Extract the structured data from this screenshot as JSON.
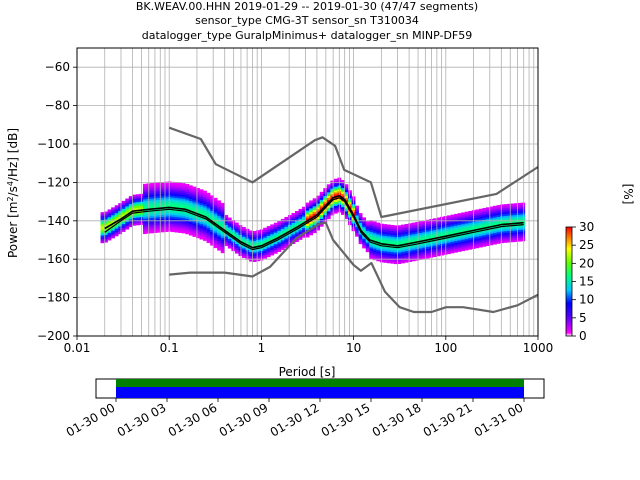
{
  "title_lines": [
    "BK.WEAV.00.HHN   2019-01-29 -- 2019-01-30  (47/47 segments)",
    "sensor_type CMG-3T sensor_sn T310034",
    "datalogger_type GuralpMinimus+ datalogger_sn MINP-DF59"
  ],
  "chart_data": {
    "type": "heatmap",
    "xlabel": "Period [s]",
    "ylabel_parts": [
      "Power [m",
      "2",
      "/s",
      "4",
      "/Hz] [dB]"
    ],
    "x_scale": "log",
    "xlim": [
      0.01,
      1000
    ],
    "ylim": [
      -200,
      -50
    ],
    "x_ticks": [
      0.01,
      0.1,
      1,
      10,
      100,
      1000
    ],
    "x_tick_labels": [
      "0.01",
      "0.1",
      "1",
      "10",
      "100",
      "1000"
    ],
    "y_ticks": [
      -200,
      -180,
      -160,
      -140,
      -120,
      -100,
      -80,
      -60
    ],
    "y_tick_labels": [
      "−200",
      "−180",
      "−160",
      "−140",
      "−120",
      "−100",
      "−80",
      "−60"
    ],
    "grid": true,
    "nhnm": {
      "period": [
        0.1,
        0.22,
        0.32,
        0.8,
        3.8,
        4.6,
        6.3,
        7.9,
        15.4,
        20,
        354.8,
        1000
      ],
      "power": [
        -91.5,
        -97.4,
        -110.5,
        -120,
        -98,
        -96.5,
        -101,
        -113.5,
        -120,
        -138,
        -126,
        -112
      ]
    },
    "nlnm": {
      "period": [
        0.1,
        0.17,
        0.4,
        0.8,
        1.24,
        2.4,
        4.3,
        5.0,
        6.0,
        10.0,
        12.0,
        15.6,
        21.9,
        31.6,
        45,
        70,
        101,
        154,
        328,
        600,
        1000
      ],
      "power": [
        -168,
        -167,
        -167,
        -169,
        -164,
        -149,
        -141.5,
        -141,
        -150,
        -163,
        -166,
        -162,
        -177,
        -185,
        -187.5,
        -187.5,
        -185,
        -185,
        -187.5,
        -184,
        -178.5
      ]
    },
    "median": {
      "period": [
        0.02,
        0.03,
        0.04,
        0.06,
        0.1,
        0.15,
        0.25,
        0.4,
        0.6,
        0.8,
        1.0,
        1.5,
        2.5,
        4,
        5,
        6,
        7,
        8,
        10,
        12,
        15,
        20,
        30,
        50,
        100,
        200,
        400,
        700
      ],
      "power": [
        -144,
        -139,
        -135,
        -134,
        -133,
        -134,
        -138,
        -145,
        -151,
        -154,
        -153,
        -149,
        -143,
        -137,
        -132,
        -128,
        -127,
        -129,
        -137,
        -145,
        -150,
        -152,
        -153,
        -151,
        -148,
        -145,
        -142,
        -141
      ]
    },
    "mode": {
      "period": [
        0.02,
        0.03,
        0.04,
        0.06,
        0.1,
        0.15,
        0.25,
        0.4,
        0.6,
        0.8,
        1.0,
        1.5,
        2.5,
        4,
        5,
        6,
        7,
        8,
        10,
        12,
        15,
        20,
        30,
        50,
        100,
        200,
        400,
        700
      ],
      "power": [
        -146,
        -140,
        -136,
        -135,
        -134,
        -135,
        -139,
        -146,
        -152,
        -155,
        -154,
        -150,
        -144,
        -138,
        -133,
        -129,
        -128,
        -130,
        -138,
        -146,
        -151,
        -153,
        -154,
        -152,
        -149,
        -146,
        -143,
        -142
      ]
    },
    "colorbar": {
      "label": "[%]",
      "vmin": 0,
      "vmax": 30,
      "ticks": [
        0,
        5,
        10,
        15,
        20,
        25,
        30
      ],
      "tick_labels": [
        "0",
        "5",
        "10",
        "15",
        "20",
        "25",
        "30"
      ]
    },
    "timeline": {
      "tick_labels": [
        "01-30 00",
        "01-30 03",
        "01-30 06",
        "01-30 09",
        "01-30 12",
        "01-30 15",
        "01-30 18",
        "01-30 21",
        "01-31 00"
      ],
      "colors": {
        "data": "#0000ff",
        "gaps": "#008000"
      }
    },
    "colors": {
      "nhnm": "#666666",
      "nlnm": "#666666",
      "median": "#000000",
      "mode": "#000000",
      "grid": "#b0b0b0"
    }
  }
}
